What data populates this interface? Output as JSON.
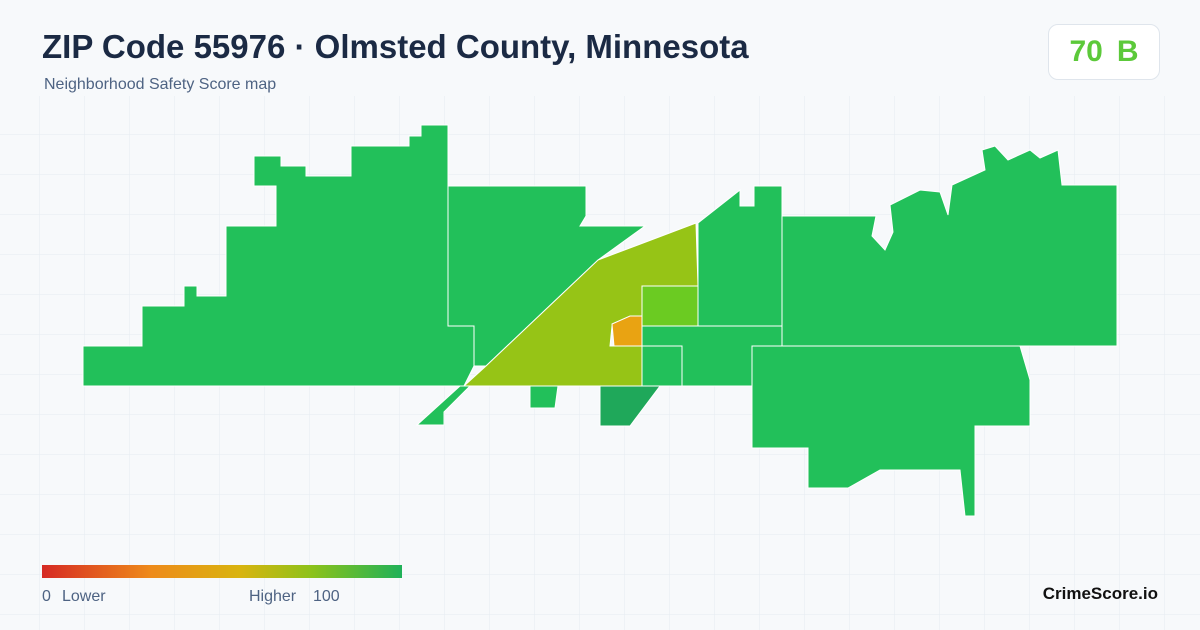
{
  "header": {
    "title": "ZIP Code 55976 · Olmsted County, Minnesota",
    "subtitle": "Neighborhood Safety Score map",
    "score": "70",
    "grade": "B"
  },
  "legend": {
    "min": "0",
    "min_label": "Lower",
    "max_label": "Higher",
    "max": "100"
  },
  "brand": "CrimeScore.io"
}
